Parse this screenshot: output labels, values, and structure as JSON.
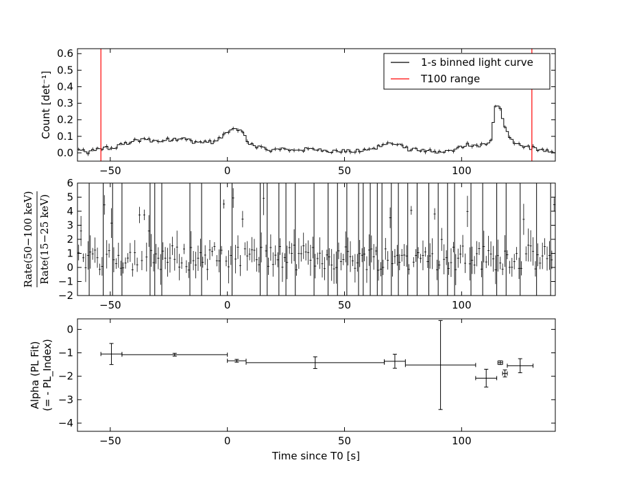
{
  "chart_data": [
    {
      "type": "line",
      "panel": "top",
      "title": "",
      "xlabel": "",
      "ylabel": "Count [det⁻¹]",
      "xlim": [
        -64,
        140
      ],
      "ylim": [
        -0.05,
        0.63
      ],
      "xticks": [
        -50,
        0,
        50,
        100
      ],
      "yticks": [
        0.0,
        0.1,
        0.2,
        0.3,
        0.4,
        0.5,
        0.6
      ],
      "ytick_labels": [
        "0.0",
        "0.1",
        "0.2",
        "0.3",
        "0.4",
        "0.5",
        "0.6"
      ],
      "legend": {
        "position": "top-right",
        "entries": [
          {
            "label": "1-s binned light curve",
            "color": "#000000"
          },
          {
            "label": "T100 range",
            "color": "#ff0000"
          }
        ]
      },
      "t100_range": [
        -54,
        130
      ],
      "series": [
        {
          "name": "1-s binned light curve",
          "color": "#000000",
          "key_points": [
            [
              -64,
              0.02
            ],
            [
              -60,
              0.0
            ],
            [
              -56,
              0.02
            ],
            [
              -52,
              0.03
            ],
            [
              -48,
              0.03
            ],
            [
              -45,
              0.05
            ],
            [
              -40,
              0.07
            ],
            [
              -35,
              0.08
            ],
            [
              -30,
              0.07
            ],
            [
              -25,
              0.08
            ],
            [
              -20,
              0.09
            ],
            [
              -15,
              0.07
            ],
            [
              -10,
              0.06
            ],
            [
              -5,
              0.07
            ],
            [
              -2,
              0.1
            ],
            [
              0,
              0.13
            ],
            [
              3,
              0.14
            ],
            [
              6,
              0.15
            ],
            [
              8,
              0.08
            ],
            [
              10,
              0.05
            ],
            [
              13,
              0.04
            ],
            [
              16,
              0.02
            ],
            [
              25,
              0.02
            ],
            [
              35,
              0.02
            ],
            [
              45,
              0.01
            ],
            [
              55,
              0.01
            ],
            [
              62,
              0.02
            ],
            [
              66,
              0.05
            ],
            [
              70,
              0.06
            ],
            [
              74,
              0.04
            ],
            [
              78,
              0.02
            ],
            [
              85,
              0.01
            ],
            [
              92,
              0.0
            ],
            [
              98,
              0.02
            ],
            [
              102,
              0.05
            ],
            [
              106,
              0.04
            ],
            [
              110,
              0.05
            ],
            [
              113,
              0.09
            ],
            [
              114,
              0.28
            ],
            [
              116,
              0.29
            ],
            [
              118,
              0.19
            ],
            [
              120,
              0.1
            ],
            [
              123,
              0.06
            ],
            [
              127,
              0.04
            ],
            [
              130,
              0.03
            ],
            [
              135,
              0.01
            ],
            [
              140,
              0.0
            ]
          ],
          "noise_amplitude": 0.012
        }
      ]
    },
    {
      "type": "line",
      "panel": "middle",
      "title": "",
      "xlabel": "",
      "ylabel_numerator": "Rate(50−100 keV)",
      "ylabel_denominator": "Rate(15−25 keV)",
      "xlim": [
        -64,
        140
      ],
      "ylim": [
        -2,
        6
      ],
      "xticks": [
        -50,
        0,
        50,
        100
      ],
      "yticks": [
        -2,
        -1,
        0,
        1,
        2,
        3,
        4,
        5,
        6
      ],
      "ytick_labels": [
        "−2",
        "−1",
        "0",
        "1",
        "2",
        "3",
        "4",
        "5",
        "6"
      ],
      "series": [
        {
          "name": "",
          "color": "#000000",
          "description_mean": 0.7,
          "full_range_bars_x": [
            -59,
            -53,
            -49,
            -45,
            -33,
            -31,
            -28,
            -16,
            -11,
            -3,
            2,
            14,
            17,
            22,
            25,
            29,
            37,
            43,
            47,
            51,
            56,
            58,
            61,
            64,
            66,
            70,
            73,
            77,
            81,
            86,
            90,
            94,
            97,
            104,
            109,
            115,
            119,
            125,
            132,
            138
          ],
          "noise_amplitude": 0.9
        }
      ]
    },
    {
      "type": "scatter",
      "panel": "bottom",
      "title": "",
      "xlabel": "Time since T0 [s]",
      "ylabel_line1": "Alpha (PL Fit)",
      "ylabel_line2": "(= - PL_Index)",
      "xlim": [
        -64,
        140
      ],
      "ylim": [
        -4.35,
        0.45
      ],
      "xticks": [
        -50,
        0,
        50,
        100
      ],
      "xtick_labels": [
        "−50",
        "0",
        "50",
        "100"
      ],
      "yticks": [
        -4,
        -3,
        -2,
        -1,
        0
      ],
      "ytick_labels": [
        "−4",
        "−3",
        "−2",
        "−1",
        "0"
      ],
      "series": [
        {
          "name": "",
          "color": "#000000",
          "points": [
            {
              "x": -49.5,
              "xerr": 4.5,
              "y": -1.05,
              "yerr": 0.45
            },
            {
              "x": -22.5,
              "xerr": 22.5,
              "y": -1.08,
              "yerr": 0.06
            },
            {
              "x": 4,
              "xerr": 4,
              "y": -1.34,
              "yerr": 0.06
            },
            {
              "x": 37.5,
              "xerr": 29.5,
              "y": -1.42,
              "yerr": 0.25
            },
            {
              "x": 71.5,
              "xerr": 4.5,
              "y": -1.36,
              "yerr": 0.3
            },
            {
              "x": 91,
              "xerr": 15,
              "y": -1.52,
              "yerr": 1.9
            },
            {
              "x": 110.5,
              "xerr": 4.5,
              "y": -2.08,
              "yerr": 0.38
            },
            {
              "x": 116.5,
              "xerr": 1.0,
              "y": -1.42,
              "yerr": 0.08
            },
            {
              "x": 118.5,
              "xerr": 1.0,
              "y": -1.88,
              "yerr": 0.15
            },
            {
              "x": 125,
              "xerr": 5.5,
              "y": -1.55,
              "yerr": 0.3
            }
          ]
        }
      ]
    }
  ]
}
